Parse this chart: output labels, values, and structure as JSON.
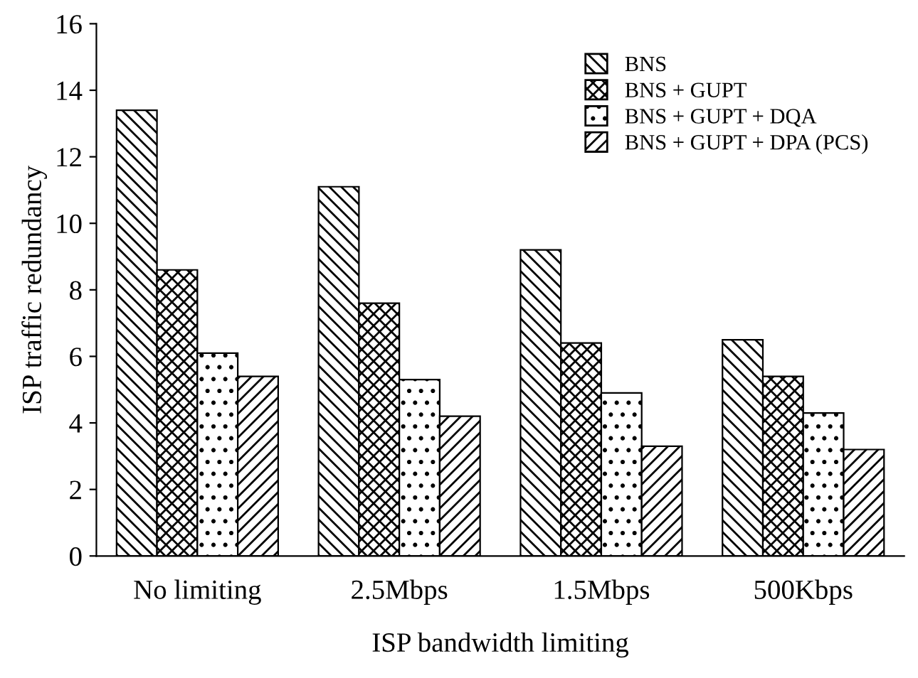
{
  "chart_data": {
    "type": "bar",
    "xlabel": "ISP bandwidth limiting",
    "ylabel": "ISP traffic redundancy",
    "categories": [
      "No limiting",
      "2.5Mbps",
      "1.5Mbps",
      "500Kbps"
    ],
    "series": [
      {
        "name": "BNS",
        "color": "#000000",
        "values": [
          13.4,
          11.1,
          9.2,
          6.5
        ]
      },
      {
        "name": "BNS + GUPT",
        "color": "#000000",
        "values": [
          8.6,
          7.6,
          6.4,
          5.4
        ]
      },
      {
        "name": "BNS + GUPT + DQA",
        "color": "#000000",
        "values": [
          6.1,
          5.3,
          4.9,
          4.3
        ]
      },
      {
        "name": "BNS + GUPT + DPA (PCS)",
        "color": "#000000",
        "values": [
          5.4,
          4.2,
          3.3,
          3.2
        ]
      }
    ],
    "ylim": [
      0,
      16
    ],
    "yticks": [
      0,
      2,
      4,
      6,
      8,
      10,
      12,
      14,
      16
    ],
    "grid": false,
    "legend": "top right"
  }
}
